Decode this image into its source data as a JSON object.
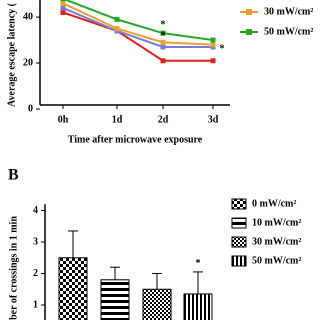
{
  "chart_data": [
    {
      "type": "line",
      "y_label": "Average escape latency (",
      "x_label": "Time after microwave exposure",
      "categories": [
        "0h",
        "1d",
        "2d",
        "3d"
      ],
      "ylim": [
        0,
        47
      ],
      "yticks": [
        0,
        20,
        40
      ],
      "series": [
        {
          "color": "#e0201c",
          "values": [
            42,
            34,
            21,
            21
          ]
        },
        {
          "color": "#7b7bd6",
          "values": [
            44,
            34,
            27,
            27
          ]
        },
        {
          "name": "30 mW/cm²",
          "color": "#f0a030",
          "values": [
            46,
            35,
            29,
            28
          ]
        },
        {
          "name": "50 mW/cm²",
          "color": "#22aa22",
          "values": [
            48,
            39,
            33,
            30
          ]
        }
      ],
      "annotations": [
        "*",
        "*",
        "*"
      ]
    },
    {
      "type": "bar",
      "panel": "B",
      "y_label": "ber of crossings in 1 min",
      "ylim": [
        0.5,
        4.2
      ],
      "yticks": [
        1,
        2,
        3,
        4
      ],
      "series": [
        {
          "name": "0 mW/cm²",
          "value": 2.5,
          "error": 0.85
        },
        {
          "name": "10 mW/cm²",
          "value": 1.8,
          "error": 0.4
        },
        {
          "name": "30 mW/cm²",
          "value": 1.5,
          "error": 0.5
        },
        {
          "name": "50 mW/cm²",
          "value": 1.35,
          "error": 0.7
        }
      ],
      "annotation": "*"
    }
  ]
}
